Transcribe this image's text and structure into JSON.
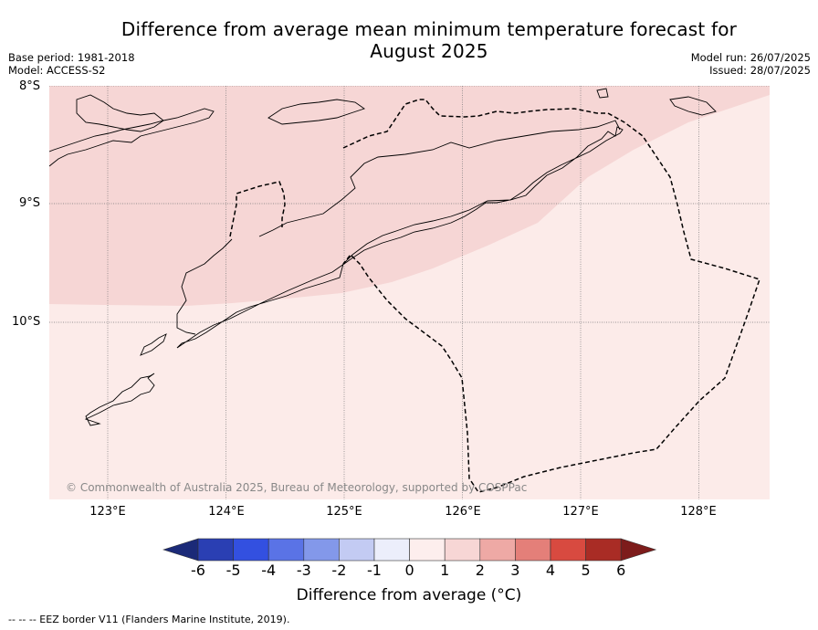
{
  "title_line1": "Difference from average mean minimum temperature forecast for",
  "title_line2": "August 2025",
  "base_period": "Base period: 1981-2018",
  "model": "Model: ACCESS-S2",
  "model_run": "Model run: 26/07/2025",
  "issued": "Issued: 28/07/2025",
  "lat_labels": [
    "8°S",
    "9°S",
    "10°S"
  ],
  "lon_labels": [
    "123°E",
    "124°E",
    "125°E",
    "126°E",
    "127°E",
    "128°E"
  ],
  "copyright": "© Commonwealth of Australia 2025, Bureau of Meteorology, supported by COSPPac",
  "colorbar": {
    "label": "Difference from average (°C)",
    "ticks": [
      "-6",
      "-5",
      "-4",
      "-3",
      "-2",
      "-1",
      "0",
      "1",
      "2",
      "3",
      "4",
      "5",
      "6"
    ],
    "colors": [
      "#1b2a78",
      "#2a3fb3",
      "#3350e0",
      "#5a73e6",
      "#8398ea",
      "#c3cbf3",
      "#eceefb",
      "#fdeeed",
      "#f7d6d5",
      "#eea9a5",
      "#e47f79",
      "#d84a40",
      "#a92c25",
      "#7d1c1b"
    ]
  },
  "footnote": "-- -- -- EEZ border V11 (Flanders Marine Institute, 2019).",
  "map_fills": {
    "range_0_1": "#fcebe9",
    "range_1_2": "#f6d6d5"
  }
}
